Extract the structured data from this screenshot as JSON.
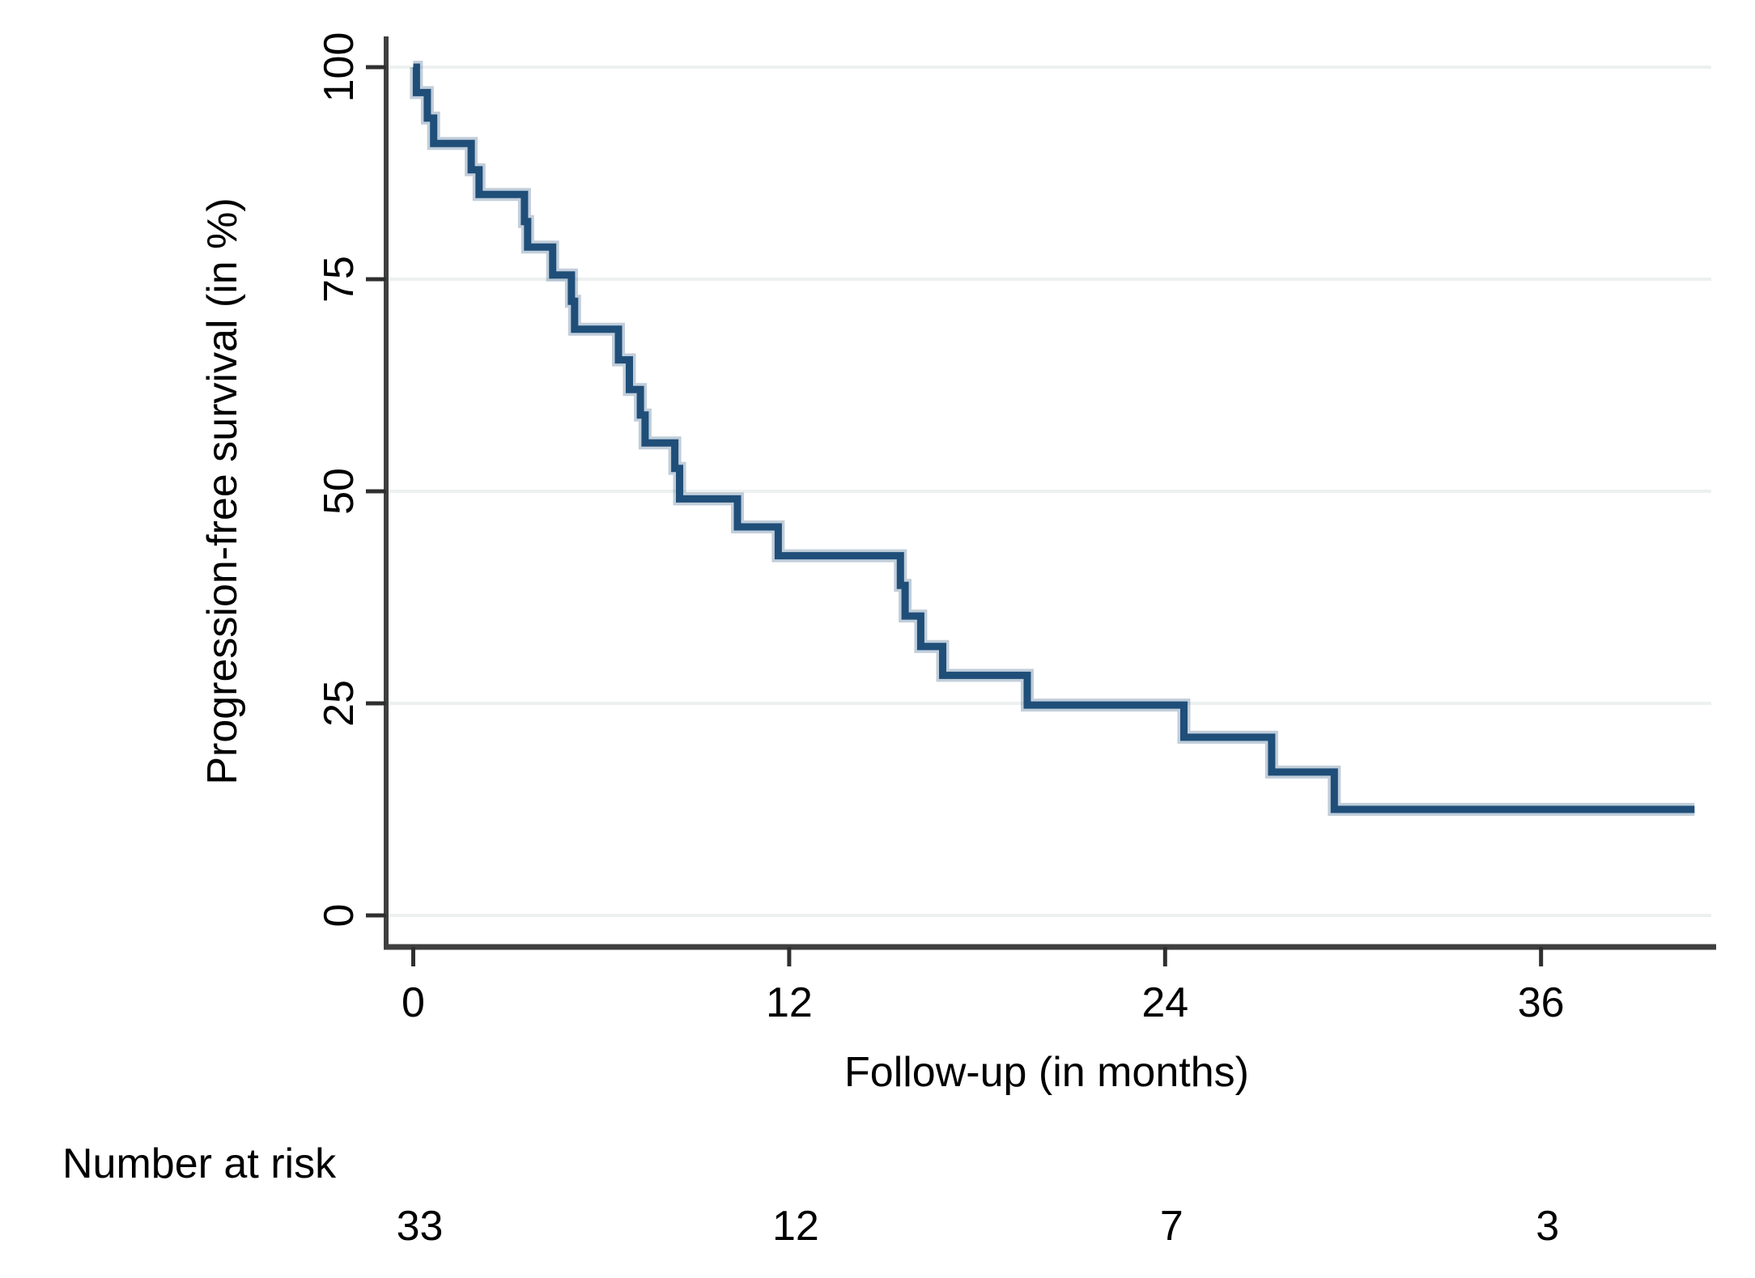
{
  "chart_data": {
    "type": "line",
    "subtype": "kaplan-meier-step-curve",
    "title": "",
    "xlabel": "Follow-up (in months)",
    "ylabel": "Progression-free survival (in %)",
    "x_ticks": [
      0,
      12,
      24,
      36
    ],
    "y_ticks": [
      100,
      75,
      50,
      25,
      0
    ],
    "xlim": [
      0,
      41.5
    ],
    "ylim": [
      0,
      100
    ],
    "grid": "horizontal-only",
    "legend": "none",
    "series": [
      {
        "name": "Progression-free survival",
        "color": "#1f4e79",
        "step_points": [
          [
            0,
            100
          ],
          [
            0.1,
            97.0
          ],
          [
            0.45,
            94.0
          ],
          [
            0.65,
            91.0
          ],
          [
            1.85,
            87.9
          ],
          [
            2.1,
            85.0
          ],
          [
            3.55,
            81.8
          ],
          [
            3.65,
            78.8
          ],
          [
            4.45,
            75.5
          ],
          [
            5.05,
            72.4
          ],
          [
            5.15,
            69.1
          ],
          [
            6.55,
            65.5
          ],
          [
            6.9,
            62.0
          ],
          [
            7.25,
            59.0
          ],
          [
            7.4,
            55.7
          ],
          [
            8.35,
            52.7
          ],
          [
            8.5,
            49.1
          ],
          [
            10.35,
            45.8
          ],
          [
            11.65,
            42.4
          ],
          [
            15.55,
            38.9
          ],
          [
            15.7,
            35.3
          ],
          [
            16.2,
            31.7
          ],
          [
            16.9,
            28.3
          ],
          [
            19.6,
            24.8
          ],
          [
            24.6,
            21.0
          ],
          [
            27.4,
            16.9
          ],
          [
            29.4,
            12.5
          ],
          [
            40.9,
            12.5
          ]
        ]
      }
    ],
    "number_at_risk": {
      "label": "Number at risk",
      "times": [
        0,
        12,
        24,
        36
      ],
      "counts": [
        "33",
        "12",
        "7",
        "3"
      ]
    },
    "colors": {
      "curve": "#1f4e79",
      "curve_halo": "rgba(31,78,121,0.28)",
      "gridline": "#ecf1f0",
      "axis": "#3f3f3f",
      "tick": "#2f2f2f",
      "text": "#000000",
      "background": "#ffffff"
    }
  }
}
